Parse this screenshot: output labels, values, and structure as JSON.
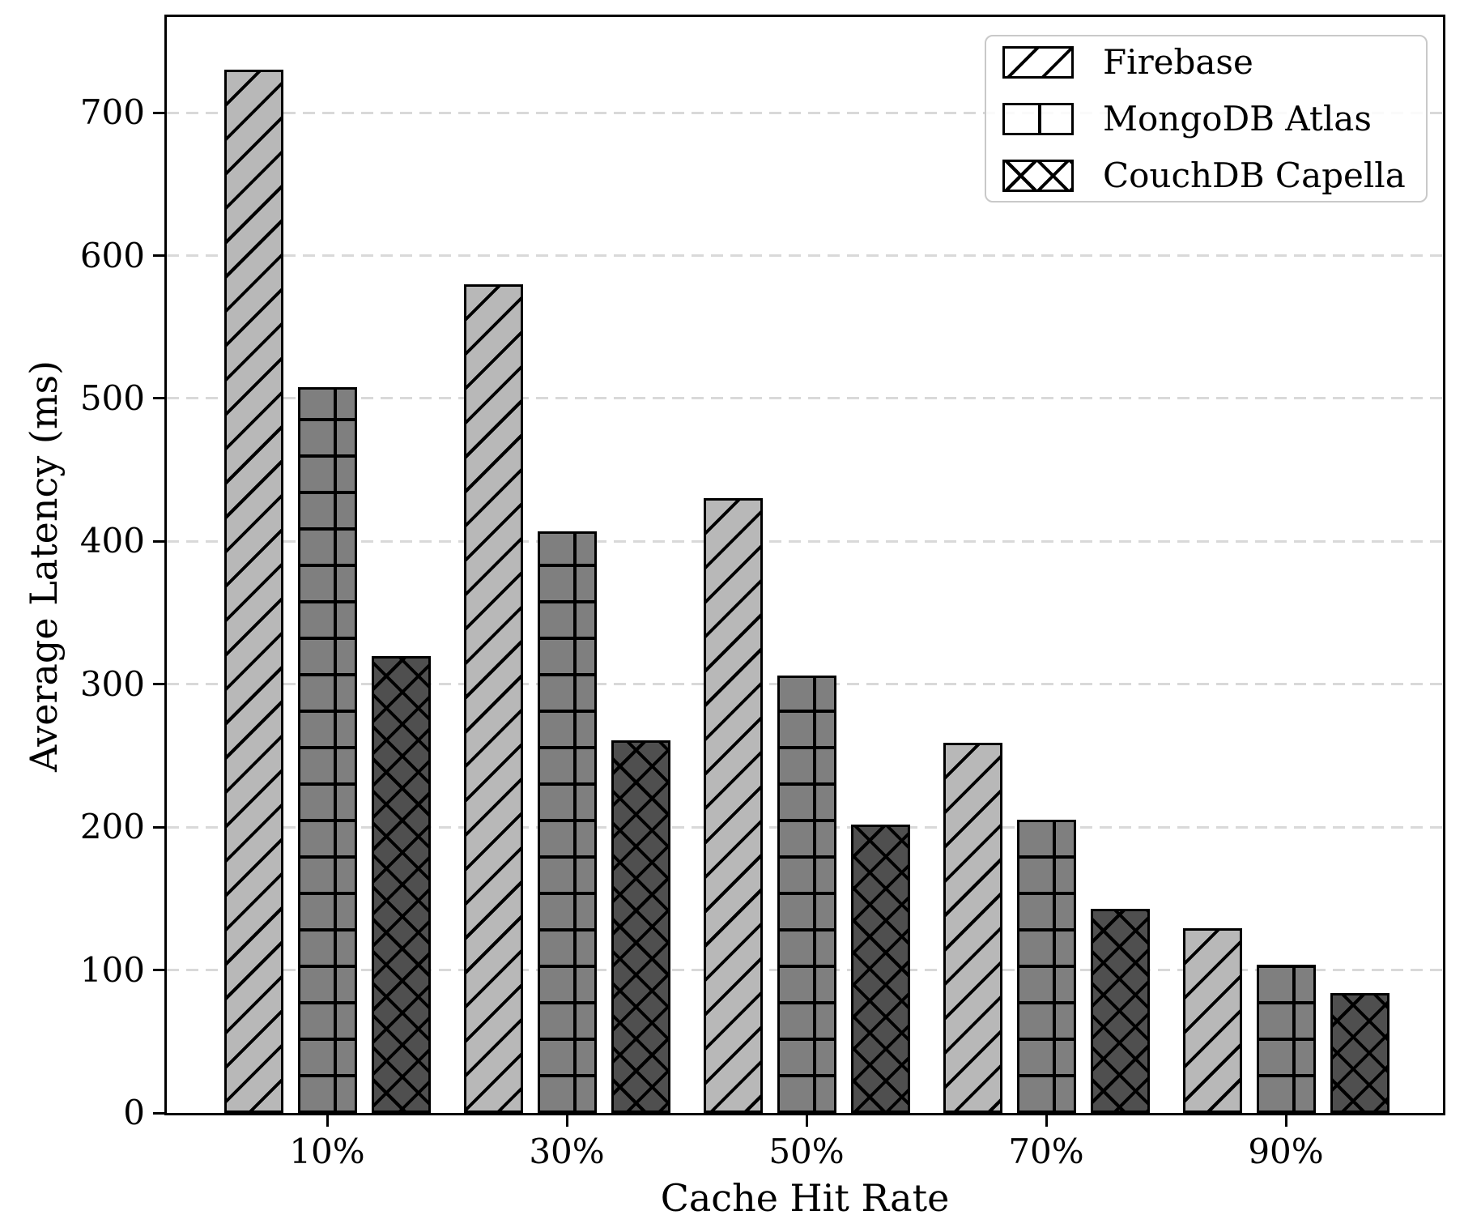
{
  "chart_data": {
    "type": "bar",
    "title": "",
    "xlabel": "Cache Hit Rate",
    "ylabel": "Average Latency (ms)",
    "categories": [
      "10%",
      "30%",
      "50%",
      "70%",
      "90%"
    ],
    "series": [
      {
        "name": "Firebase",
        "hatch": "/",
        "fill": "#b8b8b8",
        "values": [
          730,
          580,
          430,
          259,
          129
        ]
      },
      {
        "name": "MongoDB Atlas",
        "hatch": "+",
        "fill": "#7f7f7f",
        "values": [
          508,
          407,
          306,
          205,
          104
        ]
      },
      {
        "name": "CouchDB Capella",
        "hatch": "x",
        "fill": "#4f4f4f",
        "values": [
          320,
          261,
          202,
          143,
          84
        ]
      }
    ],
    "ylim": [
      0,
      767
    ],
    "yticks": [
      0,
      100,
      200,
      300,
      400,
      500,
      600,
      700
    ],
    "grid": "horizontal-dashed",
    "gridline_color": "#d9d9d9",
    "bar_edge_color": "#000000",
    "legend_position": "upper-right"
  }
}
